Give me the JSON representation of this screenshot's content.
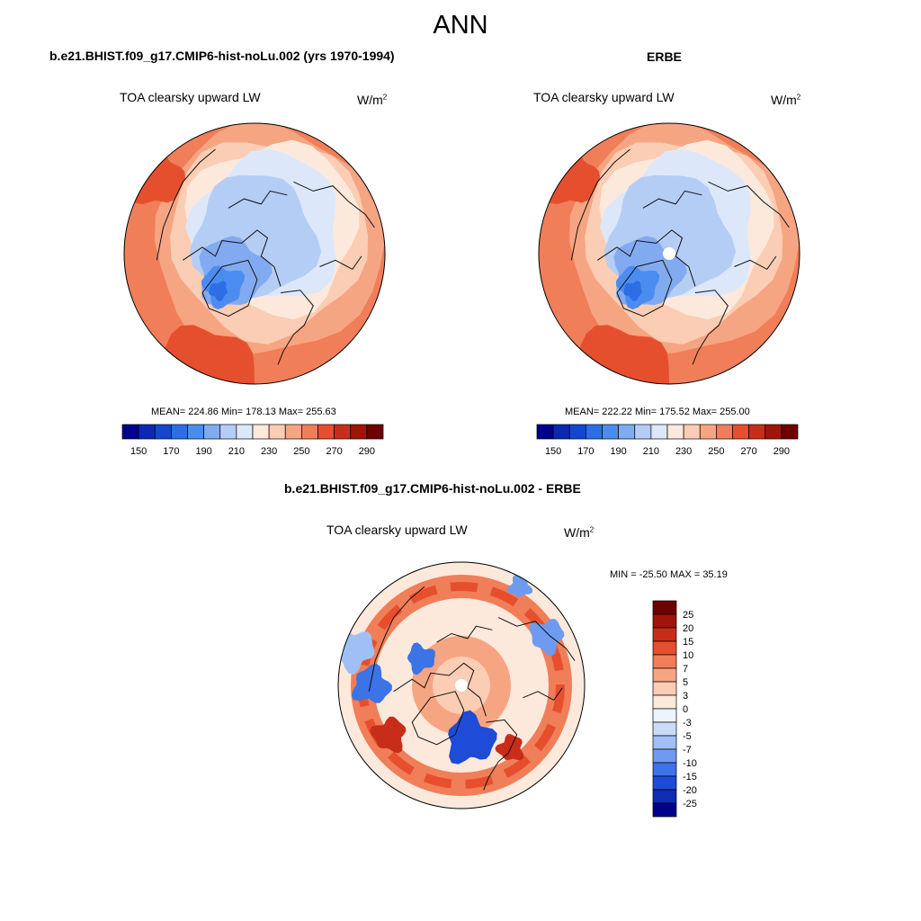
{
  "title": "ANN",
  "panel_a": {
    "case_title": "b.e21.BHIST.f09_g17.CMIP6-hist-noLu.002 (yrs 1970-1994)",
    "variable": "TOA clearsky upward LW",
    "units": "W/m",
    "units_sup": "2",
    "stats": "MEAN= 224.86  Min= 178.13  Max= 255.63"
  },
  "panel_b": {
    "case_title": "ERBE",
    "variable": "TOA clearsky upward LW",
    "units": "W/m",
    "units_sup": "2",
    "stats": "MEAN= 222.22  Min= 175.52  Max= 255.00"
  },
  "panel_c": {
    "case_title": "b.e21.BHIST.f09_g17.CMIP6-hist-noLu.002 - ERBE",
    "variable": "TOA clearsky upward LW",
    "units": "W/m",
    "units_sup": "2",
    "stats": "MIN = -25.50 MAX =  35.19"
  },
  "abs_colorbar": {
    "colors": [
      "#00008b",
      "#0a28b4",
      "#1446d2",
      "#2d6ee6",
      "#4b8cf0",
      "#82aaf0",
      "#b4cdf5",
      "#dce8fa",
      "#fde9dc",
      "#fbcdb4",
      "#f6a582",
      "#f07e59",
      "#e64f2d",
      "#c82d19",
      "#a01409",
      "#6e0000"
    ],
    "tick_labels": [
      "150",
      "170",
      "190",
      "210",
      "230",
      "250",
      "270",
      "290"
    ]
  },
  "diff_colorbar": {
    "colors": [
      "#6e0000",
      "#a01409",
      "#c82d19",
      "#e64f2d",
      "#f07e59",
      "#f6a582",
      "#fbcdb4",
      "#fde9dc",
      "#eef4fd",
      "#c8dcf8",
      "#a0c0f5",
      "#6e9bf0",
      "#3c73e6",
      "#1e4bd7",
      "#0f2db4",
      "#00008b"
    ],
    "tick_labels": [
      "25",
      "20",
      "15",
      "10",
      "7",
      "5",
      "3",
      "0",
      "-3",
      "-5",
      "-7",
      "-10",
      "-15",
      "-20",
      "-25"
    ]
  }
}
